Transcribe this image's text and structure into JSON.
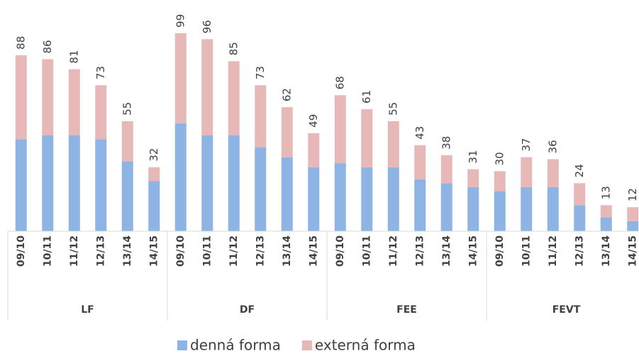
{
  "chart_data": {
    "type": "stacked_bar",
    "groups": [
      {
        "name": "LF",
        "categories": [
          "09/10",
          "10/11",
          "11/12",
          "12/13",
          "13/14",
          "14/15"
        ]
      },
      {
        "name": "DF",
        "categories": [
          "09/10",
          "10/11",
          "11/12",
          "12/13",
          "13/14",
          "14/15"
        ]
      },
      {
        "name": "FEE",
        "categories": [
          "09/10",
          "10/11",
          "11/12",
          "12/13",
          "13/14",
          "14/15"
        ]
      },
      {
        "name": "FEVT",
        "categories": [
          "09/10",
          "10/11",
          "11/12",
          "12/13",
          "13/14",
          "14/15"
        ]
      }
    ],
    "series": [
      {
        "name": "denná forma",
        "color": "#8eb4e3",
        "values": [
          46,
          48,
          48,
          46,
          35,
          25,
          54,
          48,
          48,
          42,
          37,
          32,
          34,
          32,
          32,
          26,
          24,
          22,
          20,
          22,
          22,
          13,
          7,
          5
        ]
      },
      {
        "name": "externá forma",
        "color": "#e6b9b8",
        "values": [
          42,
          38,
          33,
          27,
          20,
          7,
          45,
          48,
          37,
          31,
          25,
          17,
          34,
          29,
          23,
          17,
          14,
          9,
          10,
          15,
          14,
          11,
          6,
          7
        ]
      }
    ],
    "totals": [
      88,
      86,
      81,
      73,
      55,
      32,
      99,
      96,
      85,
      73,
      62,
      49,
      68,
      61,
      55,
      43,
      38,
      31,
      30,
      37,
      36,
      24,
      13,
      12
    ],
    "ylim": [
      0,
      100
    ],
    "legend": "bottom"
  }
}
